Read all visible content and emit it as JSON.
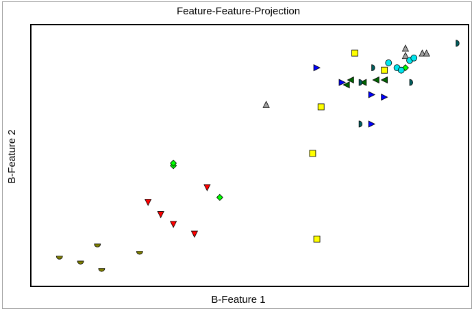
{
  "chart_data": {
    "type": "scatter",
    "title": "Feature-Feature-Projection",
    "xlabel": "B-Feature 1",
    "ylabel": "B-Feature 2",
    "xlim": [
      0,
      100
    ],
    "ylim": [
      0,
      100
    ],
    "grid": false,
    "legend": "none",
    "series": [
      {
        "marker": "half-circle-down",
        "color": "#808000",
        "points": [
          [
            5,
            9
          ],
          [
            10,
            7
          ],
          [
            14,
            14
          ],
          [
            15,
            4
          ],
          [
            24,
            11
          ]
        ]
      },
      {
        "marker": "triangle-down",
        "color": "#ff0000",
        "points": [
          [
            26,
            31
          ],
          [
            29,
            26
          ],
          [
            32,
            22
          ],
          [
            37,
            18
          ],
          [
            40,
            37
          ]
        ]
      },
      {
        "marker": "diamond",
        "color": "#00ff00",
        "points": [
          [
            32,
            46
          ],
          [
            32,
            47
          ],
          [
            43,
            33
          ],
          [
            86,
            85
          ],
          [
            87,
            86
          ]
        ]
      },
      {
        "marker": "triangle-up",
        "color": "#a0a0a0",
        "points": [
          [
            54,
            71
          ],
          [
            87,
            94
          ],
          [
            87,
            91
          ],
          [
            91,
            92
          ],
          [
            92,
            92
          ]
        ]
      },
      {
        "marker": "square",
        "color": "#ffff00",
        "points": [
          [
            65,
            51
          ],
          [
            66,
            16
          ],
          [
            67,
            70
          ],
          [
            75,
            92
          ],
          [
            82,
            85
          ]
        ]
      },
      {
        "marker": "triangle-right",
        "color": "#0000ff",
        "points": [
          [
            66,
            86
          ],
          [
            72,
            80
          ],
          [
            79,
            75
          ],
          [
            79,
            63
          ],
          [
            82,
            74
          ]
        ]
      },
      {
        "marker": "triangle-left",
        "color": "#006400",
        "points": [
          [
            73,
            79
          ],
          [
            74,
            81
          ],
          [
            77,
            80
          ],
          [
            80,
            81
          ],
          [
            82,
            81
          ]
        ]
      },
      {
        "marker": "half-circle-right",
        "color": "#006060",
        "points": [
          [
            76,
            63
          ],
          [
            79,
            86
          ],
          [
            88,
            80
          ],
          [
            99,
            96
          ],
          [
            76,
            80
          ]
        ]
      },
      {
        "marker": "circle",
        "color": "#00e5ee",
        "points": [
          [
            83,
            88
          ],
          [
            85,
            86
          ],
          [
            86,
            85
          ],
          [
            88,
            89
          ],
          [
            89,
            90
          ]
        ]
      }
    ]
  }
}
